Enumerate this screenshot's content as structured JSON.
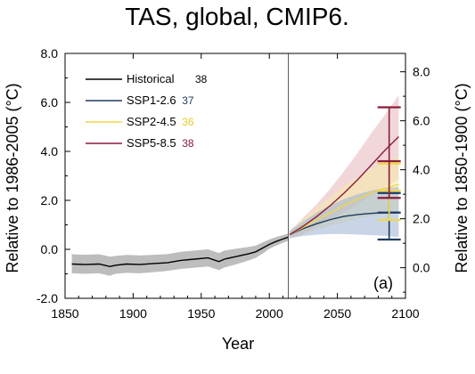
{
  "chart_data": {
    "type": "line",
    "title": "TAS, global, CMIP6.",
    "xlabel": "Year",
    "ylabel_left": "Relative to 1986-2005 (°C)",
    "ylabel_right": "Relative to 1850-1900 (°C)",
    "panel_label": "(a)",
    "xlim": [
      1850,
      2100
    ],
    "ylim_left": [
      -2.0,
      8.0
    ],
    "right_axis_offset": 0.75,
    "x_ticks": [
      1850,
      1900,
      1950,
      2000,
      2050,
      2100
    ],
    "x_tick_labels": [
      "1850",
      "1900",
      "1950",
      "2000",
      "2050",
      "2100"
    ],
    "y_ticks_left": [
      -2,
      0,
      2,
      4,
      6,
      8
    ],
    "y_tick_labels_left": [
      "-2.0",
      "0.0",
      "2.0",
      "4.0",
      "6.0",
      "8.0"
    ],
    "y_ticks_right": [
      0,
      2,
      4,
      6,
      8
    ],
    "y_tick_labels_right": [
      "0.0",
      "2.0",
      "4.0",
      "6.0",
      "8.0"
    ],
    "divider_year": 2014,
    "legend_position": "top-left",
    "series": [
      {
        "name": "Historical",
        "count": "38",
        "color": "#000000",
        "count_color": "#000000",
        "band_color": "#bdbdbd",
        "x": [
          1855,
          1865,
          1875,
          1883,
          1887,
          1895,
          1905,
          1915,
          1925,
          1935,
          1945,
          1955,
          1963,
          1967,
          1975,
          1985,
          1990,
          1995,
          2000,
          2005,
          2010,
          2014
        ],
        "y": [
          -0.6,
          -0.62,
          -0.6,
          -0.7,
          -0.65,
          -0.6,
          -0.62,
          -0.58,
          -0.55,
          -0.45,
          -0.4,
          -0.35,
          -0.5,
          -0.4,
          -0.3,
          -0.18,
          -0.1,
          0.05,
          0.2,
          0.32,
          0.42,
          0.5
        ],
        "lower": [
          -0.98,
          -1.0,
          -0.98,
          -1.08,
          -1.0,
          -0.96,
          -0.98,
          -0.93,
          -0.88,
          -0.8,
          -0.75,
          -0.7,
          -0.85,
          -0.74,
          -0.62,
          -0.45,
          -0.35,
          -0.18,
          0.02,
          0.15,
          0.27,
          0.35
        ],
        "upper": [
          -0.2,
          -0.22,
          -0.2,
          -0.3,
          -0.27,
          -0.23,
          -0.25,
          -0.22,
          -0.2,
          -0.1,
          -0.05,
          0.0,
          -0.15,
          -0.05,
          0.02,
          0.1,
          0.15,
          0.28,
          0.4,
          0.5,
          0.58,
          0.65
        ]
      },
      {
        "name": "SSP1-2.6",
        "count": "37",
        "color": "#1f3a5f",
        "count_color": "#1f3a5f",
        "band_color": "#9db3d3",
        "x": [
          2015,
          2025,
          2035,
          2045,
          2055,
          2065,
          2075,
          2085,
          2095
        ],
        "y": [
          0.6,
          0.85,
          1.05,
          1.22,
          1.35,
          1.42,
          1.47,
          1.5,
          1.52
        ],
        "lower": [
          0.45,
          0.55,
          0.6,
          0.62,
          0.62,
          0.6,
          0.58,
          0.55,
          0.5
        ],
        "upper": [
          0.75,
          1.15,
          1.5,
          1.8,
          2.05,
          2.25,
          2.4,
          2.5,
          2.55
        ]
      },
      {
        "name": "SSP2-4.5",
        "count": "36",
        "color": "#f0d64a",
        "count_color": "#e6c92a",
        "band_color": "#f5e9a6",
        "x": [
          2015,
          2025,
          2035,
          2045,
          2055,
          2065,
          2075,
          2085,
          2095
        ],
        "y": [
          0.6,
          0.9,
          1.2,
          1.5,
          1.8,
          2.05,
          2.3,
          2.5,
          2.65
        ],
        "lower": [
          0.45,
          0.6,
          0.8,
          0.95,
          1.1,
          1.25,
          1.35,
          1.42,
          1.5
        ],
        "upper": [
          0.75,
          1.25,
          1.7,
          2.15,
          2.6,
          2.95,
          3.3,
          3.55,
          3.8
        ]
      },
      {
        "name": "SSP5-8.5",
        "count": "38",
        "color": "#8b1c3a",
        "count_color": "#8b1c3a",
        "band_color": "#e8b7bc",
        "x": [
          2015,
          2025,
          2035,
          2045,
          2055,
          2065,
          2075,
          2085,
          2095
        ],
        "y": [
          0.6,
          0.95,
          1.35,
          1.8,
          2.3,
          2.85,
          3.45,
          4.05,
          4.6
        ],
        "lower": [
          0.45,
          0.65,
          0.92,
          1.2,
          1.5,
          1.85,
          2.2,
          2.55,
          2.85
        ],
        "upper": [
          0.75,
          1.3,
          1.85,
          2.5,
          3.2,
          3.95,
          4.75,
          5.5,
          6.3
        ]
      }
    ],
    "range_bars": [
      {
        "series": "SSP1-2.6",
        "color": "#1f3a5f",
        "x": 2088,
        "low": 0.4,
        "mid": 1.5,
        "high": 2.3
      },
      {
        "series": "SSP2-4.5",
        "color": "#f0d64a",
        "x": 2088,
        "low": 1.2,
        "mid": 2.4,
        "high": 3.5
      },
      {
        "series": "SSP5-8.5",
        "color": "#8b1c3a",
        "x": 2088,
        "low": 2.1,
        "mid": 3.6,
        "high": 5.8
      }
    ]
  }
}
